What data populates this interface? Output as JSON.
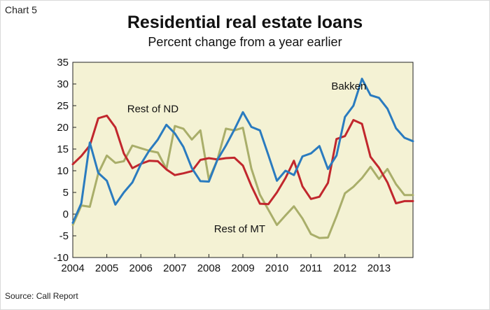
{
  "header": {
    "chart_label": "Chart 5",
    "title": "Residential real estate loans",
    "subtitle": "Percent change from a year earlier"
  },
  "footer": {
    "source": "Source: Call Report"
  },
  "colors": {
    "plot_bg": "#f4f2d4",
    "bakken": "#2a7bbf",
    "rest_of_nd": "#c1272d",
    "rest_of_mt": "#a9ae6a"
  },
  "chart_data": {
    "type": "line",
    "title": "Residential real estate loans",
    "subtitle": "Percent change from a year earlier",
    "xlabel": "",
    "ylabel": "",
    "xlim": [
      2004.0,
      2014.0
    ],
    "ylim": [
      -10,
      35
    ],
    "yticks": [
      -10,
      -5,
      0,
      5,
      10,
      15,
      20,
      25,
      30,
      35
    ],
    "xticks": [
      2004,
      2005,
      2006,
      2007,
      2008,
      2009,
      2010,
      2011,
      2012,
      2013
    ],
    "grid": false,
    "legend": "inline labels",
    "x": [
      2004.0,
      2004.25,
      2004.5,
      2004.75,
      2005.0,
      2005.25,
      2005.5,
      2005.75,
      2006.0,
      2006.25,
      2006.5,
      2006.75,
      2007.0,
      2007.25,
      2007.5,
      2007.75,
      2008.0,
      2008.25,
      2008.5,
      2008.75,
      2009.0,
      2009.25,
      2009.5,
      2009.75,
      2010.0,
      2010.25,
      2010.5,
      2010.75,
      2011.0,
      2011.25,
      2011.5,
      2011.75,
      2012.0,
      2012.25,
      2012.5,
      2012.75,
      2013.0,
      2013.25,
      2013.5,
      2013.75,
      2014.0
    ],
    "series": [
      {
        "name": "Bakken",
        "values": [
          -2,
          2.5,
          16.5,
          9.5,
          7.7,
          2.2,
          5,
          7.3,
          11.5,
          14.7,
          17.2,
          20.6,
          18.6,
          15.5,
          10.6,
          7.6,
          7.5,
          12.5,
          15.8,
          19.5,
          23.5,
          20.1,
          19.3,
          13.6,
          7.7,
          10,
          9,
          13.3,
          14,
          15.7,
          10.4,
          13.5,
          22.4,
          25,
          31.2,
          27.4,
          26.8,
          24.3,
          19.8,
          17.6,
          16.8
        ]
      },
      {
        "name": "Rest of ND",
        "values": [
          11.5,
          13.4,
          15.8,
          22.1,
          22.7,
          20,
          14,
          10.6,
          11.6,
          12.3,
          12.2,
          10.3,
          9,
          9.4,
          9.9,
          12.5,
          12.9,
          12.6,
          12.9,
          13,
          11.2,
          6.5,
          2.4,
          2.3,
          5,
          8.3,
          12.3,
          6.4,
          3.5,
          4,
          7.2,
          17.3,
          18,
          21.7,
          20.8,
          13.2,
          10.7,
          7.3,
          2.5,
          3,
          3
        ]
      },
      {
        "name": "Rest of MT",
        "values": [
          -2.5,
          2,
          1.7,
          9.4,
          13.5,
          11.8,
          12.2,
          15.8,
          15.2,
          14.6,
          14.2,
          10.4,
          20.3,
          19.7,
          17.2,
          19.3,
          8,
          12.5,
          19.7,
          19.3,
          19.9,
          10.5,
          4.5,
          1,
          -2.5,
          -0.3,
          1.8,
          -1,
          -4.6,
          -5.5,
          -5.4,
          -0.5,
          4.8,
          6.3,
          8.3,
          10.9,
          8.1,
          10.4,
          6.9,
          4.4,
          4.4
        ]
      }
    ],
    "annotations": [
      {
        "text": "Bakken",
        "series": "Bakken",
        "anchor_x": 2011.6,
        "anchor_y": 29.5
      },
      {
        "text": "Rest of ND",
        "series": "Rest of ND",
        "anchor_x": 2005.6,
        "anchor_y": 24.3
      },
      {
        "text": "Rest of MT",
        "series": "Rest of MT",
        "anchor_x": 2008.15,
        "anchor_y": -3.4
      }
    ]
  }
}
